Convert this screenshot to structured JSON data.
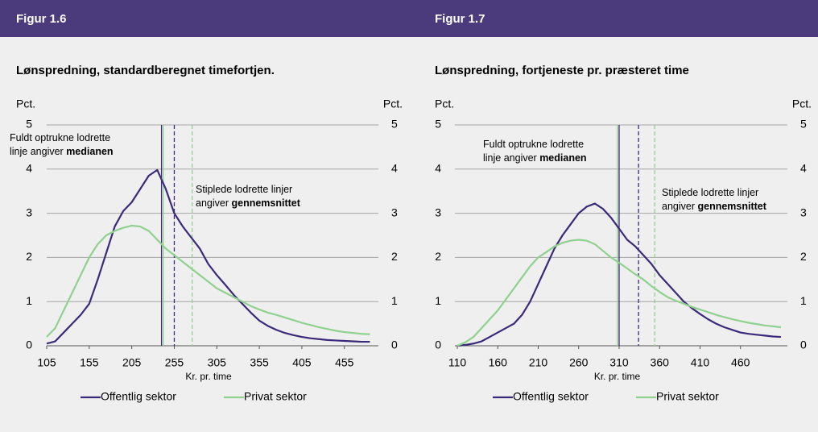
{
  "chart_data": [
    {
      "type": "line",
      "figure_label": "Figur 1.6",
      "title": "Lønspredning, standardberegnet timefortjen.",
      "ylabel": "Pct.",
      "y2label": "Pct.",
      "xlabel": "Kr. pr. time",
      "x": [
        105,
        115,
        125,
        135,
        145,
        155,
        165,
        175,
        185,
        195,
        205,
        215,
        225,
        235,
        245,
        255,
        265,
        275,
        285,
        295,
        305,
        315,
        325,
        335,
        345,
        355,
        365,
        375,
        385,
        395,
        405,
        415,
        425,
        435,
        445,
        455,
        465,
        475,
        485
      ],
      "series": [
        {
          "name": "Offentlig sektor",
          "color": "#3b2a7a",
          "values": [
            0.05,
            0.1,
            0.3,
            0.5,
            0.7,
            0.95,
            1.5,
            2.1,
            2.7,
            3.05,
            3.25,
            3.55,
            3.85,
            3.98,
            3.55,
            3.0,
            2.7,
            2.45,
            2.2,
            1.85,
            1.6,
            1.38,
            1.15,
            0.95,
            0.75,
            0.57,
            0.45,
            0.36,
            0.29,
            0.24,
            0.2,
            0.17,
            0.15,
            0.13,
            0.12,
            0.11,
            0.1,
            0.09,
            0.09
          ]
        },
        {
          "name": "Privat sektor",
          "color": "#8fd18f",
          "values": [
            0.2,
            0.4,
            0.8,
            1.2,
            1.6,
            2.0,
            2.3,
            2.5,
            2.6,
            2.67,
            2.72,
            2.7,
            2.6,
            2.4,
            2.2,
            2.05,
            1.9,
            1.75,
            1.6,
            1.45,
            1.3,
            1.2,
            1.1,
            1.0,
            0.9,
            0.82,
            0.75,
            0.7,
            0.64,
            0.58,
            0.52,
            0.47,
            0.42,
            0.38,
            0.34,
            0.31,
            0.29,
            0.27,
            0.26
          ]
        }
      ],
      "reference_lines": [
        {
          "x": 240,
          "color": "#3b2a7a",
          "style": "solid"
        },
        {
          "x": 242,
          "color": "#8fd18f",
          "style": "solid"
        },
        {
          "x": 255,
          "color": "#3b2a7a",
          "style": "dashed"
        },
        {
          "x": 276,
          "color": "#8fd18f",
          "style": "dashed"
        }
      ],
      "annotations": [
        {
          "lines": [
            {
              "text": "Fuldt optrukne lodrette"
            },
            {
              "text": "linje angiver ",
              "bold": "medianen"
            }
          ]
        },
        {
          "lines": [
            {
              "text": "Stiplede lodrette linjer"
            },
            {
              "text": "angiver ",
              "bold": "gennemsnittet"
            }
          ]
        }
      ],
      "xlim": [
        105,
        495
      ],
      "xticks": [
        105,
        155,
        205,
        255,
        305,
        355,
        405,
        455
      ],
      "ylim": [
        0,
        5
      ],
      "yticks": [
        0,
        1,
        2,
        3,
        4,
        5
      ],
      "y2lim": [
        0,
        5
      ],
      "y2ticks": [
        0,
        1,
        2,
        3,
        4,
        5
      ],
      "grid": true
    },
    {
      "type": "line",
      "figure_label": "Figur 1.7",
      "title": "Lønspredning, fortjeneste pr. præsteret time",
      "ylabel": "Pct.",
      "y2label": "Pct.",
      "xlabel": "Kr. pr. time",
      "x": [
        110,
        120,
        130,
        140,
        150,
        160,
        170,
        180,
        190,
        200,
        210,
        220,
        230,
        240,
        250,
        260,
        270,
        280,
        290,
        300,
        310,
        320,
        330,
        340,
        350,
        360,
        370,
        380,
        390,
        400,
        410,
        420,
        430,
        440,
        450,
        460,
        470,
        480,
        490,
        500,
        510
      ],
      "series": [
        {
          "name": "Offentlig sektor",
          "color": "#3b2a7a",
          "values": [
            0,
            0.02,
            0.05,
            0.1,
            0.2,
            0.3,
            0.4,
            0.5,
            0.7,
            1.0,
            1.4,
            1.8,
            2.2,
            2.5,
            2.75,
            3.0,
            3.15,
            3.22,
            3.1,
            2.9,
            2.65,
            2.4,
            2.25,
            2.05,
            1.85,
            1.6,
            1.4,
            1.2,
            1.0,
            0.85,
            0.72,
            0.6,
            0.5,
            0.42,
            0.36,
            0.3,
            0.27,
            0.25,
            0.23,
            0.21,
            0.2
          ]
        },
        {
          "name": "Privat sektor",
          "color": "#8fd18f",
          "values": [
            0,
            0.08,
            0.2,
            0.4,
            0.6,
            0.8,
            1.05,
            1.3,
            1.55,
            1.8,
            2.0,
            2.12,
            2.25,
            2.33,
            2.38,
            2.4,
            2.38,
            2.3,
            2.15,
            2.0,
            1.88,
            1.75,
            1.62,
            1.5,
            1.35,
            1.22,
            1.1,
            1.02,
            0.95,
            0.88,
            0.82,
            0.76,
            0.7,
            0.65,
            0.6,
            0.56,
            0.52,
            0.49,
            0.46,
            0.44,
            0.42
          ]
        }
      ],
      "reference_lines": [
        {
          "x": 310,
          "color": "#3b2a7a",
          "style": "solid"
        },
        {
          "x": 308,
          "color": "#8fd18f",
          "style": "solid"
        },
        {
          "x": 334,
          "color": "#3b2a7a",
          "style": "dashed"
        },
        {
          "x": 354,
          "color": "#8fd18f",
          "style": "dashed"
        }
      ],
      "annotations": [
        {
          "lines": [
            {
              "text": "Fuldt optrukne lodrette"
            },
            {
              "text": "linje angiver ",
              "bold": "medianen"
            }
          ]
        },
        {
          "lines": [
            {
              "text": "Stiplede lodrette linjer"
            },
            {
              "text": "angiver ",
              "bold": "gennemsnittet"
            }
          ]
        }
      ],
      "xlim": [
        107,
        518
      ],
      "xticks": [
        110,
        160,
        210,
        260,
        310,
        360,
        410,
        460
      ],
      "ylim": [
        0,
        5
      ],
      "yticks": [
        0,
        1,
        2,
        3,
        4,
        5
      ],
      "y2lim": [
        0,
        5
      ],
      "y2ticks": [
        0,
        1,
        2,
        3,
        4,
        5
      ],
      "grid": true
    }
  ]
}
